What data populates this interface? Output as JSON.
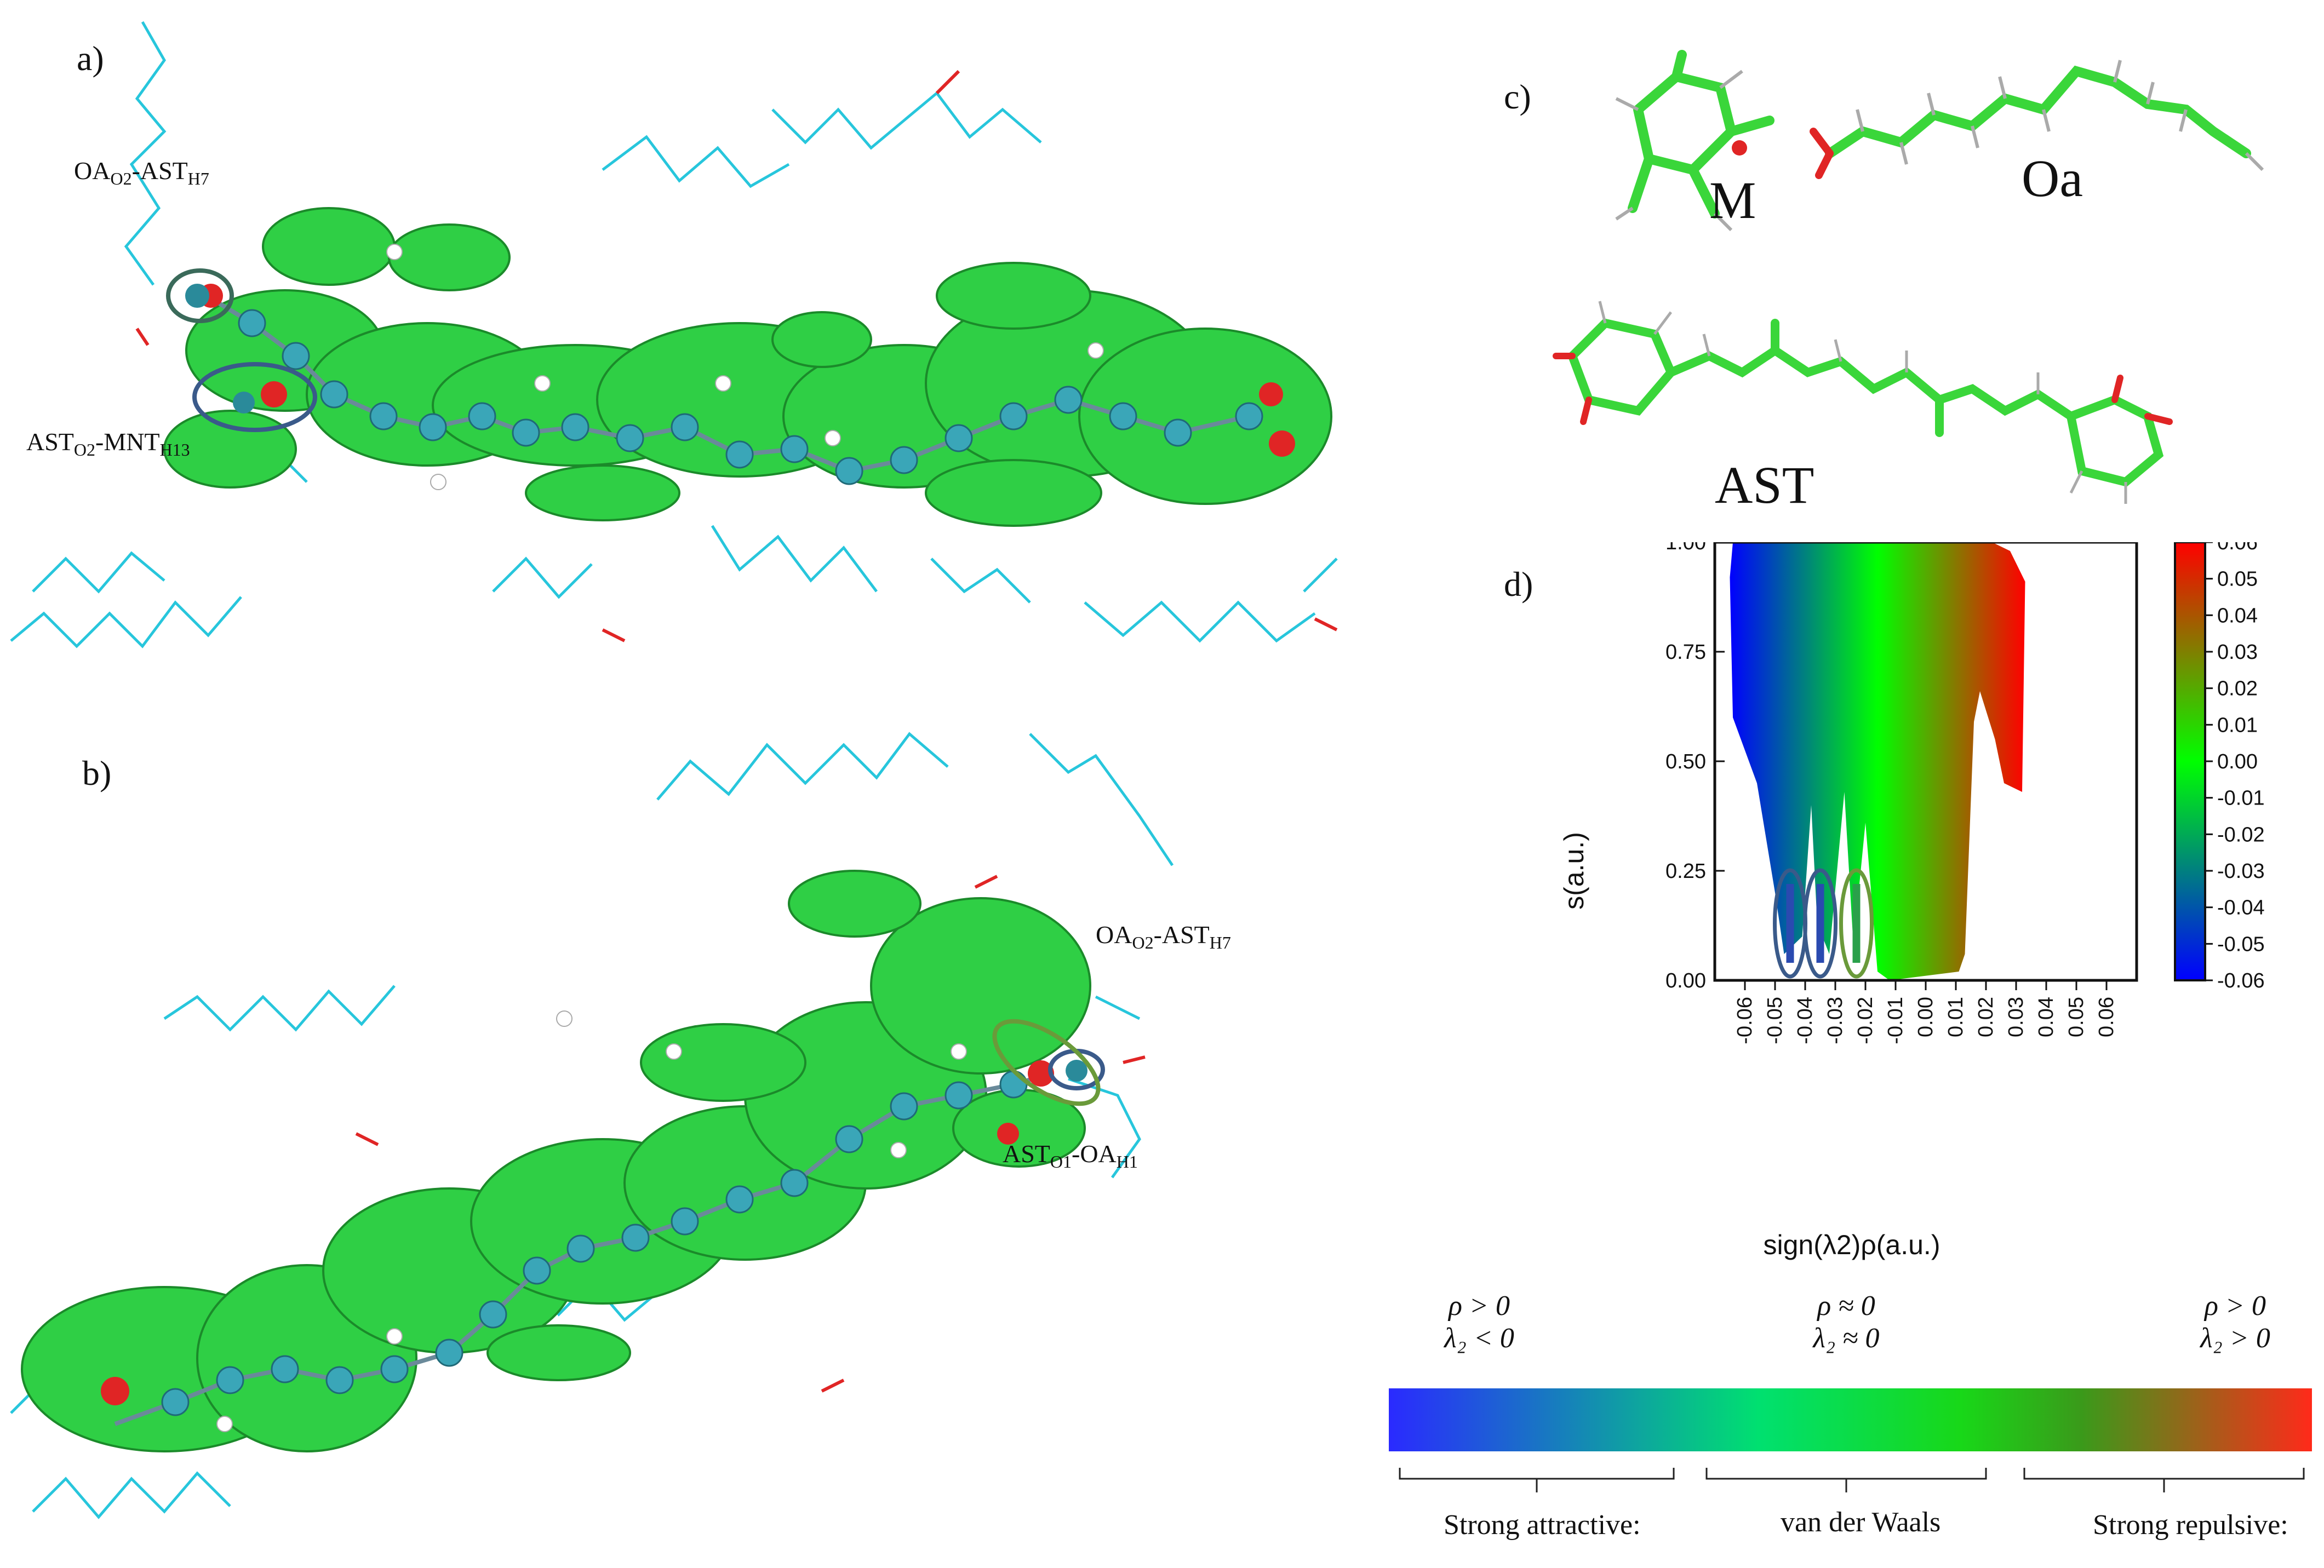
{
  "panels": {
    "a": {
      "label": "a)",
      "annotations": [
        {
          "main": "OA",
          "s1": "O2",
          "mid": "-AST",
          "s2": "H7"
        },
        {
          "main": "AST",
          "s1": "O2",
          "mid": "-MNT",
          "s2": "H13"
        }
      ]
    },
    "b": {
      "label": "b)",
      "annotations": [
        {
          "main": "OA",
          "s1": "O2",
          "mid": "-AST",
          "s2": "H7"
        },
        {
          "main": "AST",
          "s1": "O1",
          "mid": "-OA",
          "s2": "H1"
        }
      ]
    },
    "c": {
      "label": "c)",
      "molecules": [
        "M",
        "Oa",
        "AST"
      ]
    },
    "d": {
      "label": "d)"
    }
  },
  "colors": {
    "ring_blue": "#3a5a8a",
    "ring_green": "#6a9a3a",
    "isosurface": "#2fcf45",
    "stick": "#27c6dc",
    "oxygen": "#e02525",
    "carbon_ball": "#3aa6b8",
    "mol_green": "#3ad63a"
  },
  "chart_data": {
    "type": "scatter",
    "title": "",
    "xlabel": "sign(λ2)ρ(a.u.)",
    "ylabel": "s(a.u.)",
    "xlim": [
      -0.07,
      0.07
    ],
    "ylim": [
      0.0,
      1.0
    ],
    "xticks": [
      "-0.06",
      "-0.05",
      "-0.04",
      "-0.03",
      "-0.02",
      "-0.01",
      "0.00",
      "0.01",
      "0.02",
      "0.03",
      "0.04",
      "0.05",
      "0.06"
    ],
    "yticks": [
      "0.00",
      "0.25",
      "0.50",
      "0.75",
      "1.00"
    ],
    "colorbar": {
      "range": [
        -0.06,
        0.06
      ],
      "ticks": [
        "0.06",
        "0.05",
        "0.04",
        "0.03",
        "0.02",
        "0.01",
        "0.00",
        "-0.01",
        "-0.02",
        "-0.03",
        "-0.04",
        "-0.05",
        "-0.06"
      ],
      "colors": [
        "#0000ff",
        "#00ff00",
        "#ff0000"
      ]
    },
    "region_outline": [
      [
        -0.065,
        0.92
      ],
      [
        -0.064,
        1.0
      ],
      [
        0.022,
        1.0
      ],
      [
        0.028,
        0.98
      ],
      [
        0.033,
        0.91
      ],
      [
        0.032,
        0.43
      ],
      [
        0.026,
        0.45
      ],
      [
        0.023,
        0.55
      ],
      [
        0.018,
        0.66
      ],
      [
        0.016,
        0.59
      ],
      [
        0.013,
        0.06
      ],
      [
        0.011,
        0.02
      ],
      [
        -0.012,
        0.0
      ],
      [
        -0.016,
        0.02
      ],
      [
        -0.02,
        0.36
      ],
      [
        -0.024,
        0.08
      ],
      [
        -0.027,
        0.43
      ],
      [
        -0.032,
        0.06
      ],
      [
        -0.036,
        0.13
      ],
      [
        -0.038,
        0.4
      ],
      [
        -0.041,
        0.1
      ],
      [
        -0.047,
        0.06
      ],
      [
        -0.05,
        0.2
      ],
      [
        -0.056,
        0.45
      ],
      [
        -0.064,
        0.6
      ]
    ],
    "highlighted_spikes": [
      {
        "x": -0.045,
        "y_min": 0.04,
        "y_max": 0.22,
        "color": "blue"
      },
      {
        "x": -0.035,
        "y_min": 0.04,
        "y_max": 0.22,
        "color": "blue"
      },
      {
        "x": -0.023,
        "y_min": 0.04,
        "y_max": 0.22,
        "color": "green"
      }
    ]
  },
  "legend_bar": {
    "left": {
      "line1": "ρ > 0",
      "line2": "λ₂ < 0",
      "caption": "Strong attractive:"
    },
    "middle": {
      "line1": "ρ ≈ 0",
      "line2": "λ₂ ≈ 0",
      "caption": "van der Waals"
    },
    "right": {
      "line1": "ρ > 0",
      "line2": "λ₂ > 0",
      "caption": "Strong repulsive:"
    },
    "colors": [
      "#2a2aff",
      "#00e070",
      "#18d818",
      "#3a9a1a",
      "#ff2a1a"
    ]
  }
}
